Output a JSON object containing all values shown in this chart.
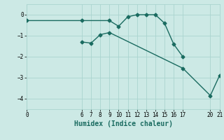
{
  "xlabel": "Humidex (Indice chaleur)",
  "bg_color": "#cce9e5",
  "grid_color": "#aad4cf",
  "line_color": "#1a6b60",
  "line1_x": [
    0,
    6,
    9,
    10,
    11,
    12,
    13,
    14,
    15,
    16,
    17
  ],
  "line1_y": [
    -0.28,
    -0.28,
    -0.28,
    -0.55,
    -0.1,
    0.0,
    0.0,
    0.0,
    -0.4,
    -1.4,
    -2.0
  ],
  "line2_x": [
    6,
    7,
    8,
    9,
    17,
    20,
    21
  ],
  "line2_y": [
    -1.3,
    -1.35,
    -0.95,
    -0.85,
    -2.55,
    -3.85,
    -2.9
  ],
  "xlim": [
    0,
    21
  ],
  "ylim": [
    -4.5,
    0.5
  ],
  "xticks": [
    0,
    6,
    7,
    8,
    9,
    10,
    11,
    12,
    13,
    14,
    15,
    16,
    17,
    20,
    21
  ],
  "yticks": [
    0,
    -1,
    -2,
    -3,
    -4
  ],
  "marker": "D",
  "markersize": 2.5,
  "linewidth": 1.0,
  "label_fontsize": 7,
  "tick_fontsize": 5.5
}
